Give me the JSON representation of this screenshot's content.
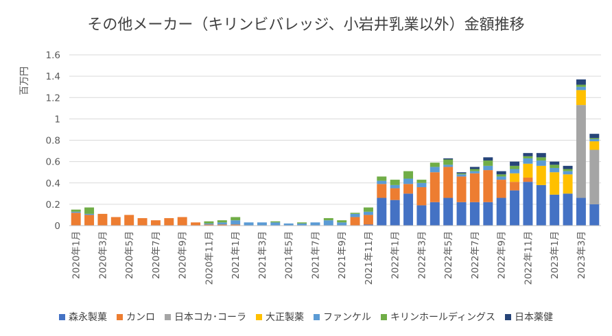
{
  "chart_data": {
    "type": "bar",
    "stacked": true,
    "title": "その他メーカー（キリンビバレッジ、小岩井乳業以外）金額推移",
    "ylabel": "百万円",
    "xlabel": "",
    "ylim": [
      0,
      1.6
    ],
    "yticks": [
      "0",
      "0.2",
      "0.4",
      "0.6",
      "0.8",
      "1",
      "1.2",
      "1.4",
      "1.6"
    ],
    "grid": true,
    "legend_position": "bottom",
    "x_tick_labels": [
      "2020年1月",
      "2020年3月",
      "2020年5月",
      "2020年7月",
      "2020年9月",
      "2020年11月",
      "2021年1月",
      "2021年3月",
      "2021年5月",
      "2021年7月",
      "2021年9月",
      "2021年11月",
      "2022年1月",
      "2022年3月",
      "2022年5月",
      "2022年7月",
      "2022年9月",
      "2022年11月",
      "2023年1月",
      "2023年3月"
    ],
    "categories": [
      "2020年1月",
      "2020年2月",
      "2020年3月",
      "2020年4月",
      "2020年5月",
      "2020年6月",
      "2020年7月",
      "2020年8月",
      "2020年9月",
      "2020年10月",
      "2020年11月",
      "2020年12月",
      "2021年1月",
      "2021年2月",
      "2021年3月",
      "2021年4月",
      "2021年5月",
      "2021年6月",
      "2021年7月",
      "2021年8月",
      "2021年9月",
      "2021年10月",
      "2021年11月",
      "2021年12月",
      "2022年1月",
      "2022年2月",
      "2022年3月",
      "2022年4月",
      "2022年5月",
      "2022年6月",
      "2022年7月",
      "2022年8月",
      "2022年9月",
      "2022年10月",
      "2022年11月",
      "2022年12月",
      "2023年1月",
      "2023年2月",
      "2023年3月",
      "2023年4月"
    ],
    "series": [
      {
        "name": "森永製菓",
        "color": "#4472C4",
        "values": [
          0,
          0,
          0,
          0,
          0,
          0,
          0,
          0,
          0,
          0,
          0,
          0,
          0,
          0,
          0,
          0,
          0,
          0,
          0,
          0,
          0,
          0,
          0.01,
          0.26,
          0.24,
          0.3,
          0.19,
          0.22,
          0.26,
          0.22,
          0.22,
          0.22,
          0.26,
          0.33,
          0.41,
          0.38,
          0.29,
          0.3,
          0.26,
          0.2
        ]
      },
      {
        "name": "カンロ",
        "color": "#ED7D31",
        "values": [
          0.12,
          0.1,
          0.11,
          0.08,
          0.1,
          0.07,
          0.05,
          0.07,
          0.08,
          0.03,
          0.01,
          0.01,
          0.01,
          0,
          0,
          0,
          0,
          0,
          0,
          0,
          0,
          0.08,
          0.09,
          0.13,
          0.11,
          0.09,
          0.17,
          0.28,
          0.29,
          0.24,
          0.27,
          0.3,
          0.17,
          0.08,
          0.04,
          0,
          0,
          0,
          0,
          0
        ]
      },
      {
        "name": "日本コカ･コーラ",
        "color": "#A5A5A5",
        "values": [
          0,
          0,
          0,
          0,
          0,
          0,
          0,
          0,
          0,
          0,
          0,
          0,
          0,
          0,
          0,
          0,
          0,
          0,
          0,
          0,
          0,
          0,
          0,
          0,
          0,
          0,
          0,
          0,
          0,
          0,
          0,
          0,
          0,
          0,
          0,
          0,
          0,
          0,
          0.87,
          0.51
        ]
      },
      {
        "name": "大正製薬",
        "color": "#FFC000",
        "values": [
          0,
          0,
          0,
          0,
          0,
          0,
          0,
          0,
          0,
          0,
          0,
          0,
          0,
          0,
          0,
          0,
          0,
          0,
          0,
          0,
          0,
          0,
          0,
          0,
          0,
          0,
          0,
          0,
          0,
          0,
          0,
          0,
          0,
          0.08,
          0.13,
          0.18,
          0.21,
          0.18,
          0.14,
          0.08
        ]
      },
      {
        "name": "ファンケル",
        "color": "#5B9BD5",
        "values": [
          0.01,
          0.01,
          0,
          0,
          0,
          0,
          0,
          0,
          0,
          0,
          0.01,
          0.02,
          0.04,
          0.03,
          0.03,
          0.03,
          0.02,
          0.02,
          0.03,
          0.05,
          0.03,
          0.03,
          0.03,
          0.03,
          0.03,
          0.05,
          0.04,
          0.05,
          0.02,
          0.02,
          0.02,
          0.04,
          0.03,
          0.04,
          0.05,
          0.05,
          0.04,
          0.03,
          0.03,
          0.02
        ]
      },
      {
        "name": "キリンホールディングス",
        "color": "#70AD47",
        "values": [
          0.02,
          0.06,
          0,
          0,
          0,
          0,
          0,
          0,
          0,
          0,
          0.02,
          0.02,
          0.03,
          0,
          0,
          0.01,
          0,
          0.01,
          0,
          0.02,
          0.02,
          0.01,
          0.04,
          0.04,
          0.05,
          0.07,
          0.03,
          0.04,
          0.05,
          0.01,
          0.02,
          0.05,
          0.02,
          0.03,
          0.02,
          0.03,
          0.03,
          0.02,
          0.02,
          0.01
        ]
      },
      {
        "name": "日本薬健",
        "color": "#264478",
        "values": [
          0,
          0,
          0,
          0,
          0,
          0,
          0,
          0,
          0,
          0,
          0,
          0,
          0,
          0,
          0,
          0,
          0,
          0,
          0,
          0,
          0,
          0,
          0,
          0,
          0,
          0,
          0,
          0,
          0.01,
          0.01,
          0.02,
          0.03,
          0.03,
          0.04,
          0.03,
          0.04,
          0.03,
          0.03,
          0.05,
          0.04
        ]
      }
    ]
  }
}
